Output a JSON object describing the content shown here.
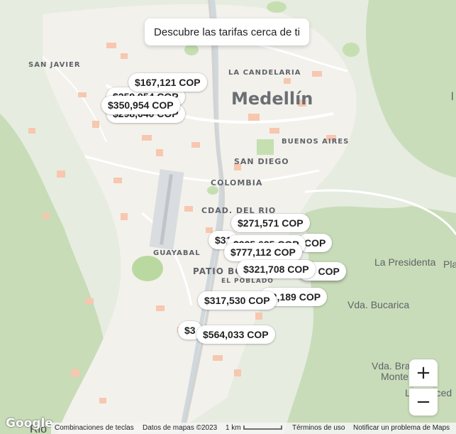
{
  "banner": {
    "label": "Descubre las tarifas cerca de ti"
  },
  "places": {
    "san_javier": "SAN JAVIER",
    "la_candelaria": "LA CANDELARIA",
    "medellin": "Medellín",
    "buenos_aires": "BUENOS AIRES",
    "san_diego": "SAN DIEGO",
    "colombia": "COLOMBIA",
    "cdad_del_rio": "CDAD. DEL RIO",
    "guayabal": "GUAYABAL",
    "patio_bonito": "PATIO BO",
    "el_poblado": "EL POBLADO",
    "la_presidenta": "La Presidenta",
    "pla": "Pla",
    "vda_bucarica": "Vda. Bucarica",
    "vda_bra": "Vda. Bra",
    "monte": "Monte",
    "la_merced": "La Merced",
    "r_edge": "l"
  },
  "prices": [
    {
      "id": "p1",
      "label": "$167,121 COP"
    },
    {
      "id": "p2",
      "label": "$259,954 COP"
    },
    {
      "id": "p3",
      "label": "$298,640 COP"
    },
    {
      "id": "p4",
      "label": "$350,954 COP"
    },
    {
      "id": "p5",
      "label": "$271,571 COP"
    },
    {
      "id": "p6",
      "label": "$31"
    },
    {
      "id": "p7",
      "label": "COP"
    },
    {
      "id": "p8",
      "label": "$225,625 COP"
    },
    {
      "id": "p9",
      "label": "$777,112 COP"
    },
    {
      "id": "p10",
      "label": "00 COP"
    },
    {
      "id": "p11",
      "label": "$321,708 COP"
    },
    {
      "id": "p12",
      "label": "92,189 COP"
    },
    {
      "id": "p13",
      "label": "$317,530 COP"
    },
    {
      "id": "p14",
      "label": "$3"
    },
    {
      "id": "p15",
      "label": "$564,033 COP"
    }
  ],
  "zoom": {
    "in_symbol": "+",
    "out_symbol": "−"
  },
  "attribution": {
    "logo": "Google",
    "shortcuts": "Combinaciones de teclas",
    "map_data": "Datos de mapas ©2023",
    "scale": "1 km",
    "terms": "Términos de uso",
    "report": "Notificar un problema de Maps",
    "bottom_left": "Rio"
  },
  "colors": {
    "land": "#eef0e8",
    "urban": "#f1efe9",
    "park": "#cfe5c1",
    "forest": "#b9d6a6",
    "road": "#ffffff",
    "highway": "#dadada",
    "block": "#f7c9b4"
  }
}
